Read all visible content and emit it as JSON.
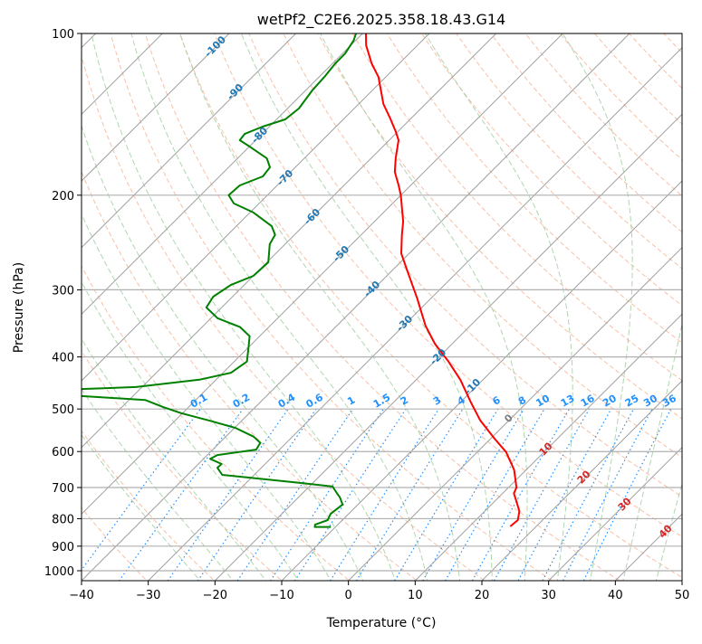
{
  "chart_data": {
    "type": "skewt",
    "title": "wetPf2_C2E6.2025.358.18.43.G14",
    "xlabel": "Temperature (°C)",
    "ylabel": "Pressure (hPa)",
    "xlim": [
      -40,
      50
    ],
    "ylim": [
      1044,
      100
    ],
    "grid": true,
    "xticks": [
      "−40",
      "−30",
      "−20",
      "−10",
      "0",
      "10",
      "20",
      "30",
      "40",
      "50"
    ],
    "xtick_values": [
      -40,
      -30,
      -20,
      -10,
      0,
      10,
      20,
      30,
      40,
      50
    ],
    "yticks": [
      "100",
      "200",
      "300",
      "400",
      "500",
      "600",
      "700",
      "800",
      "900",
      "1000"
    ],
    "ytick_values": [
      100,
      200,
      300,
      400,
      500,
      600,
      700,
      800,
      900,
      1000
    ],
    "series": [
      {
        "name": "temperature",
        "color": "#ff0000",
        "points": [
          [
            100,
            -79.5
          ],
          [
            105.2,
            -77.7
          ],
          [
            113.6,
            -74.2
          ],
          [
            120.5,
            -71.1
          ],
          [
            135.3,
            -66.3
          ],
          [
            143.4,
            -63.3
          ],
          [
            152,
            -60.4
          ],
          [
            158,
            -58.6
          ],
          [
            170.8,
            -56.3
          ],
          [
            181,
            -54.4
          ],
          [
            191.8,
            -51.8
          ],
          [
            200,
            -50
          ],
          [
            223.9,
            -45.7
          ],
          [
            237,
            -43.9
          ],
          [
            256.7,
            -41.2
          ],
          [
            277,
            -37.6
          ],
          [
            311,
            -32.1
          ],
          [
            350,
            -26.7
          ],
          [
            378,
            -22.6
          ],
          [
            408,
            -17.9
          ],
          [
            441,
            -13.4
          ],
          [
            486,
            -8.4
          ],
          [
            525,
            -4.3
          ],
          [
            567,
            0.5
          ],
          [
            601,
            4.3
          ],
          [
            649,
            8.2
          ],
          [
            700,
            11.2
          ],
          [
            718,
            11.7
          ],
          [
            740,
            13.1
          ],
          [
            775,
            15.2
          ],
          [
            805,
            16.3
          ],
          [
            827,
            16.1
          ]
        ]
      },
      {
        "name": "dewpoint",
        "color": "#008000",
        "points": [
          [
            100,
            -81.0
          ],
          [
            103,
            -80.3
          ],
          [
            109,
            -79.6
          ],
          [
            113.6,
            -79.6
          ],
          [
            120.5,
            -79.2
          ],
          [
            127.7,
            -79.0
          ],
          [
            137.9,
            -78.3
          ],
          [
            144.5,
            -78.7
          ],
          [
            149.1,
            -81.0
          ],
          [
            153.8,
            -82.6
          ],
          [
            158,
            -82.4
          ],
          [
            162.3,
            -80.0
          ],
          [
            170.8,
            -75.6
          ],
          [
            177.5,
            -73.8
          ],
          [
            184.5,
            -73.5
          ],
          [
            191.8,
            -75.6
          ],
          [
            200,
            -75.8
          ],
          [
            207.2,
            -73.8
          ],
          [
            215.4,
            -69.5
          ],
          [
            228.4,
            -64.7
          ],
          [
            237,
            -62.9
          ],
          [
            246.7,
            -62.3
          ],
          [
            266.6,
            -59.8
          ],
          [
            282.6,
            -60.0
          ],
          [
            293.9,
            -62.0
          ],
          [
            308.9,
            -62.9
          ],
          [
            323.6,
            -62.3
          ],
          [
            338.8,
            -59.0
          ],
          [
            352,
            -54.3
          ],
          [
            366,
            -51.5
          ],
          [
            385,
            -49.9
          ],
          [
            408,
            -48.1
          ],
          [
            428,
            -48.8
          ],
          [
            441,
            -52.5
          ],
          [
            455,
            -60.9
          ],
          [
            459,
            -68.8
          ],
          [
            466,
            -85.0
          ],
          [
            473,
            -67.7
          ],
          [
            481,
            -57.6
          ],
          [
            496,
            -53.8
          ],
          [
            509,
            -50.2
          ],
          [
            525,
            -45.0
          ],
          [
            542,
            -39.9
          ],
          [
            563,
            -35.8
          ],
          [
            578,
            -33.9
          ],
          [
            595,
            -33.5
          ],
          [
            609,
            -38.5
          ],
          [
            619,
            -39.0
          ],
          [
            633,
            -36.5
          ],
          [
            643,
            -36.6
          ],
          [
            663,
            -34.8
          ],
          [
            686,
            -22.1
          ],
          [
            697,
            -16.5
          ],
          [
            718,
            -14.8
          ],
          [
            730,
            -13.8
          ],
          [
            753,
            -12.3
          ],
          [
            784,
            -12.7
          ],
          [
            805,
            -12.2
          ],
          [
            821,
            -13.4
          ],
          [
            829,
            -13.1
          ],
          [
            829,
            -10.7
          ]
        ]
      }
    ],
    "isotherm_labels": [
      "-100",
      "-90",
      "-80",
      "-70",
      "-60",
      "-50",
      "-40",
      "-30",
      "-20",
      "-10",
      "0",
      "10",
      "20",
      "30",
      "40"
    ],
    "mixing_ratio_labels": [
      "0.1",
      "0.2",
      "0.4",
      "0.6",
      "1",
      "1.5",
      "2",
      "3",
      "4",
      "6",
      "8",
      "10",
      "13",
      "16",
      "20",
      "25",
      "30",
      "36"
    ],
    "mixing_ratio_values": [
      0.1,
      0.2,
      0.4,
      0.6,
      1,
      1.5,
      2,
      3,
      4,
      6,
      8,
      10,
      13,
      16,
      20,
      25,
      30,
      36
    ],
    "colors": {
      "isotherm": "#a0a0a0",
      "dry_adiabat": "#f4a582",
      "moist_adiabat": "#9ccc9c",
      "mixing_ratio": "#1e90ff",
      "label_negative": "#1f77b4",
      "label_zero": "#808080",
      "label_positive": "#d62728"
    }
  }
}
